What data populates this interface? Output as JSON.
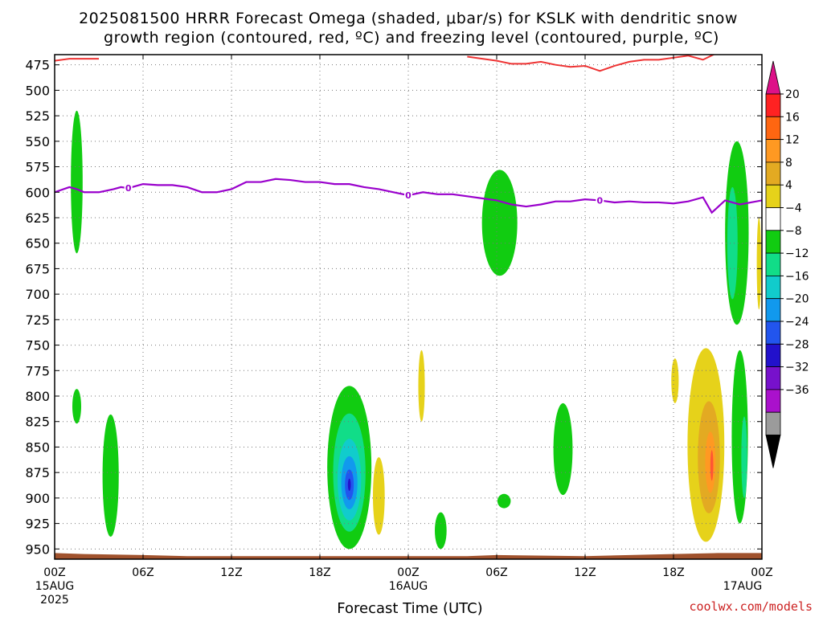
{
  "chart_data": {
    "type": "heatmap",
    "title_line1": "2025081500 HRRR Forecast Omega (shaded, μbar/s) for KSLK with dendritic snow",
    "title_line2": "growth region (contoured, red, ºC) and freezing level (contoured, purple, ºC)",
    "xlabel": "Forecast Time (UTC)",
    "credit": "coolwx.com/models",
    "x_range_hours": [
      0,
      48
    ],
    "y_range_mb": [
      465,
      960
    ],
    "y_ticks": [
      475,
      500,
      525,
      550,
      575,
      600,
      625,
      650,
      675,
      700,
      725,
      750,
      775,
      800,
      825,
      850,
      875,
      900,
      925,
      950
    ],
    "y_tick_labels": [
      "475",
      "500",
      "525",
      "550",
      "575",
      "600",
      "625",
      "650",
      "675",
      "700",
      "725",
      "750",
      "775",
      "800",
      "825",
      "850",
      "875",
      "900",
      "925",
      "950"
    ],
    "x_ticks": [
      {
        "hour": 0,
        "label": "00Z",
        "label2": "15AUG",
        "label3": "2025"
      },
      {
        "hour": 6,
        "label": "06Z"
      },
      {
        "hour": 12,
        "label": "12Z"
      },
      {
        "hour": 18,
        "label": "18Z"
      },
      {
        "hour": 24,
        "label": "00Z",
        "label2": "16AUG"
      },
      {
        "hour": 30,
        "label": "06Z"
      },
      {
        "hour": 36,
        "label": "12Z"
      },
      {
        "hour": 42,
        "label": "18Z"
      },
      {
        "hour": 48,
        "label": "00Z",
        "label2": "17AUG"
      }
    ],
    "colorbar": {
      "labels": [
        "20",
        "16",
        "12",
        "8",
        "4",
        "−4",
        "−8",
        "−12",
        "−16",
        "−20",
        "−24",
        "−28",
        "−32",
        "−36"
      ],
      "colors": [
        "#ff2222",
        "#ff6611",
        "#ff9922",
        "#e3aa22",
        "#e6d21a",
        "#eee83c",
        "#ffffff",
        "#11cc11",
        "#11dd88",
        "#11cccc",
        "#1199ee",
        "#2255ee",
        "#2211cc",
        "#7711cc",
        "#aa11cc",
        "#9b9b9b",
        "#000000",
        "#dd1188"
      ]
    },
    "freezing_level": {
      "label": "0",
      "points": [
        [
          0,
          600
        ],
        [
          1,
          595
        ],
        [
          1.5,
          597
        ],
        [
          2,
          600
        ],
        [
          3,
          600
        ],
        [
          4,
          597
        ],
        [
          4.5,
          595
        ],
        [
          5,
          596
        ],
        [
          6,
          592
        ],
        [
          7,
          593
        ],
        [
          8,
          593
        ],
        [
          9,
          595
        ],
        [
          10,
          600
        ],
        [
          11,
          600
        ],
        [
          12,
          597
        ],
        [
          13,
          590
        ],
        [
          14,
          590
        ],
        [
          15,
          587
        ],
        [
          16,
          588
        ],
        [
          17,
          590
        ],
        [
          18,
          590
        ],
        [
          19,
          592
        ],
        [
          20,
          592
        ],
        [
          21,
          595
        ],
        [
          22,
          597
        ],
        [
          23,
          600
        ],
        [
          24,
          603
        ],
        [
          25,
          600
        ],
        [
          26,
          602
        ],
        [
          27,
          602
        ],
        [
          28,
          604
        ],
        [
          29,
          606
        ],
        [
          30,
          608
        ],
        [
          31,
          612
        ],
        [
          32,
          614
        ],
        [
          33,
          612
        ],
        [
          34,
          609
        ],
        [
          35,
          609
        ],
        [
          36,
          607
        ],
        [
          37,
          608
        ],
        [
          38,
          610
        ],
        [
          39,
          609
        ],
        [
          40,
          610
        ],
        [
          41,
          610
        ],
        [
          42,
          611
        ],
        [
          43,
          609
        ],
        [
          44,
          605
        ],
        [
          44.6,
          620
        ],
        [
          45.5,
          608
        ],
        [
          46.5,
          612
        ],
        [
          48,
          608
        ]
      ]
    },
    "dendritic_region": {
      "segments": [
        [
          [
            0,
            471
          ],
          [
            1,
            469
          ],
          [
            3,
            469
          ]
        ],
        [
          [
            28,
            467
          ],
          [
            30,
            471
          ],
          [
            31,
            474
          ],
          [
            32,
            474
          ],
          [
            33,
            472
          ],
          [
            34,
            475
          ],
          [
            35,
            477
          ],
          [
            36,
            476
          ],
          [
            37,
            481
          ],
          [
            38,
            476
          ],
          [
            39,
            472
          ],
          [
            40,
            470
          ],
          [
            41,
            470
          ],
          [
            42,
            468
          ],
          [
            43,
            466
          ],
          [
            44,
            470
          ],
          [
            45,
            463
          ]
        ]
      ]
    },
    "omega_areas": [
      {
        "value": -6,
        "color": "#11cc11",
        "center_hour": 1.5,
        "center_mb": 590,
        "half_width_h": 0.4,
        "half_height_mb": 70
      },
      {
        "value": -6,
        "color": "#11cc11",
        "center_hour": 1.5,
        "center_mb": 810,
        "half_width_h": 0.3,
        "half_height_mb": 17
      },
      {
        "value": -6,
        "color": "#11cc11",
        "center_hour": 3.8,
        "center_mb": 878,
        "half_width_h": 0.55,
        "half_height_mb": 60
      },
      {
        "value": -6,
        "color": "#11cc11",
        "center_hour": 20.0,
        "center_mb": 870,
        "half_width_h": 1.5,
        "half_height_mb": 80
      },
      {
        "value": -10,
        "color": "#11dd88",
        "center_hour": 20.0,
        "center_mb": 875,
        "half_width_h": 1.1,
        "half_height_mb": 58
      },
      {
        "value": -14,
        "color": "#11cccc",
        "center_hour": 20.0,
        "center_mb": 882,
        "half_width_h": 0.8,
        "half_height_mb": 40
      },
      {
        "value": -18,
        "color": "#1199ee",
        "center_hour": 20.0,
        "center_mb": 885,
        "half_width_h": 0.55,
        "half_height_mb": 26
      },
      {
        "value": -22,
        "color": "#2255ee",
        "center_hour": 20.0,
        "center_mb": 887,
        "half_width_h": 0.3,
        "half_height_mb": 15
      },
      {
        "value": -26,
        "color": "#2211cc",
        "center_hour": 20.0,
        "center_mb": 887,
        "half_width_h": 0.1,
        "half_height_mb": 6
      },
      {
        "value": 6,
        "color": "#e6d21a",
        "center_hour": 22.0,
        "center_mb": 898,
        "half_width_h": 0.4,
        "half_height_mb": 38
      },
      {
        "value": 6,
        "color": "#e6d21a",
        "center_hour": 24.9,
        "center_mb": 790,
        "half_width_h": 0.22,
        "half_height_mb": 35
      },
      {
        "value": -6,
        "color": "#11cc11",
        "center_hour": 26.2,
        "center_mb": 932,
        "half_width_h": 0.4,
        "half_height_mb": 18
      },
      {
        "value": -6,
        "color": "#11cc11",
        "center_hour": 30.2,
        "center_mb": 630,
        "half_width_h": 1.2,
        "half_height_mb": 52
      },
      {
        "value": -6,
        "color": "#11cc11",
        "center_hour": 30.5,
        "center_mb": 903,
        "half_width_h": 0.45,
        "half_height_mb": 7
      },
      {
        "value": -6,
        "color": "#11cc11",
        "center_hour": 34.5,
        "center_mb": 852,
        "half_width_h": 0.65,
        "half_height_mb": 45
      },
      {
        "value": 6,
        "color": "#e6d21a",
        "center_hour": 42.1,
        "center_mb": 785,
        "half_width_h": 0.25,
        "half_height_mb": 22
      },
      {
        "value": 6,
        "color": "#e6d21a",
        "center_hour": 44.2,
        "center_mb": 848,
        "half_width_h": 1.25,
        "half_height_mb": 95
      },
      {
        "value": 10,
        "color": "#e3aa22",
        "center_hour": 44.4,
        "center_mb": 860,
        "half_width_h": 0.75,
        "half_height_mb": 55
      },
      {
        "value": 14,
        "color": "#ff9922",
        "center_hour": 44.5,
        "center_mb": 865,
        "half_width_h": 0.35,
        "half_height_mb": 30
      },
      {
        "value": 18,
        "color": "#ff5533",
        "center_hour": 44.6,
        "center_mb": 868,
        "half_width_h": 0.1,
        "half_height_mb": 15
      },
      {
        "value": -6,
        "color": "#11cc11",
        "center_hour": 46.3,
        "center_mb": 640,
        "half_width_h": 0.8,
        "half_height_mb": 90
      },
      {
        "value": -6,
        "color": "#11cc11",
        "center_hour": 46.5,
        "center_mb": 840,
        "half_width_h": 0.55,
        "half_height_mb": 85
      },
      {
        "value": -10,
        "color": "#11dd88",
        "center_hour": 46.0,
        "center_mb": 650,
        "half_width_h": 0.35,
        "half_height_mb": 55
      },
      {
        "value": -10,
        "color": "#11dd88",
        "center_hour": 46.8,
        "center_mb": 860,
        "half_width_h": 0.2,
        "half_height_mb": 40
      },
      {
        "value": 6,
        "color": "#e6d21a",
        "center_hour": 47.8,
        "center_mb": 670,
        "half_width_h": 0.15,
        "half_height_mb": 45
      }
    ],
    "terrain_color": "#a0522d",
    "freezing_color": "#9900cc",
    "dendritic_color": "#ee3333",
    "grid": true
  }
}
